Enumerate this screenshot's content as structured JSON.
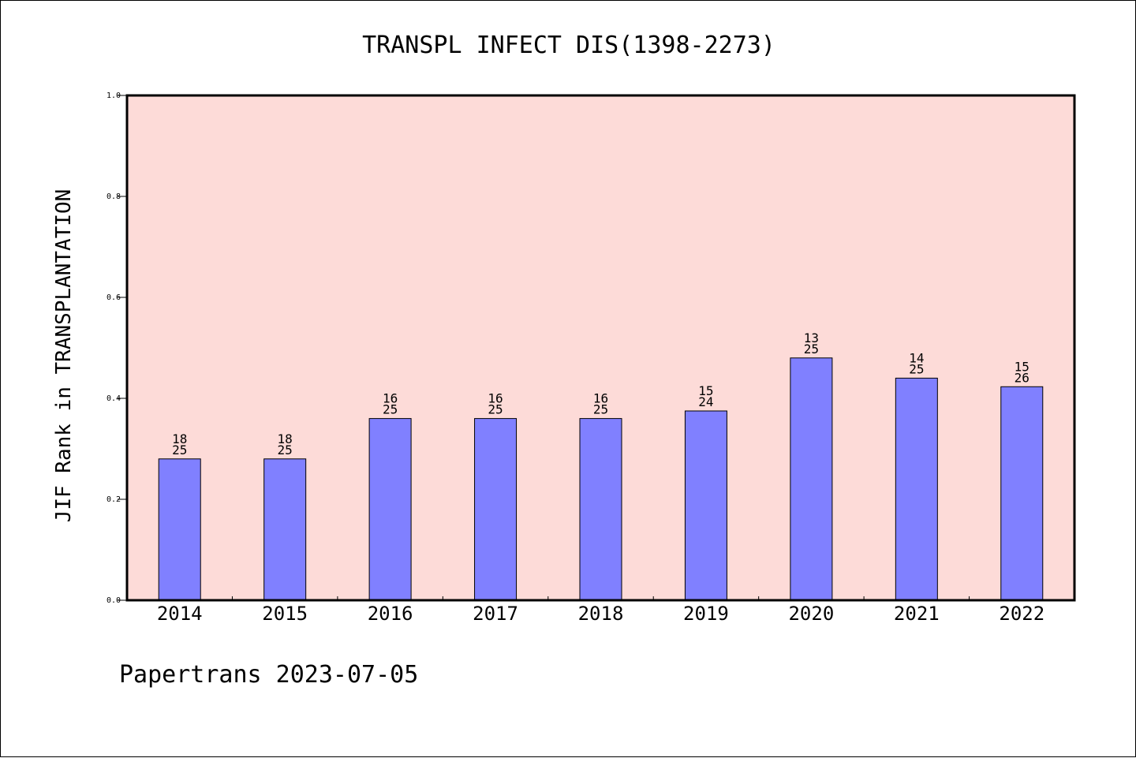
{
  "chart_data": {
    "type": "bar",
    "title": "TRANSPL INFECT DIS(1398-2273)",
    "xlabel": "",
    "ylabel": "JIF Rank in TRANSPLANTATION",
    "ylim": [
      0,
      1.0
    ],
    "yticks": [
      0.0,
      0.2,
      0.4,
      0.6,
      0.8,
      1.0
    ],
    "ytick_labels": [
      "0.0",
      "0.2",
      "0.4",
      "0.6",
      "0.8",
      "1.0"
    ],
    "grid": false,
    "legend": "none",
    "categories": [
      "2014",
      "2015",
      "2016",
      "2017",
      "2018",
      "2019",
      "2020",
      "2021",
      "2022"
    ],
    "values": [
      0.28,
      0.28,
      0.36,
      0.36,
      0.36,
      0.375,
      0.48,
      0.44,
      0.423
    ],
    "ranks": [
      "18",
      "18",
      "16",
      "16",
      "16",
      "15",
      "13",
      "14",
      "15"
    ],
    "totals": [
      "25",
      "25",
      "25",
      "25",
      "25",
      "24",
      "25",
      "25",
      "26"
    ],
    "bar_color": "#8080ff",
    "plot_background": "#fddbd8"
  },
  "footer": "Papertrans 2023-07-05"
}
